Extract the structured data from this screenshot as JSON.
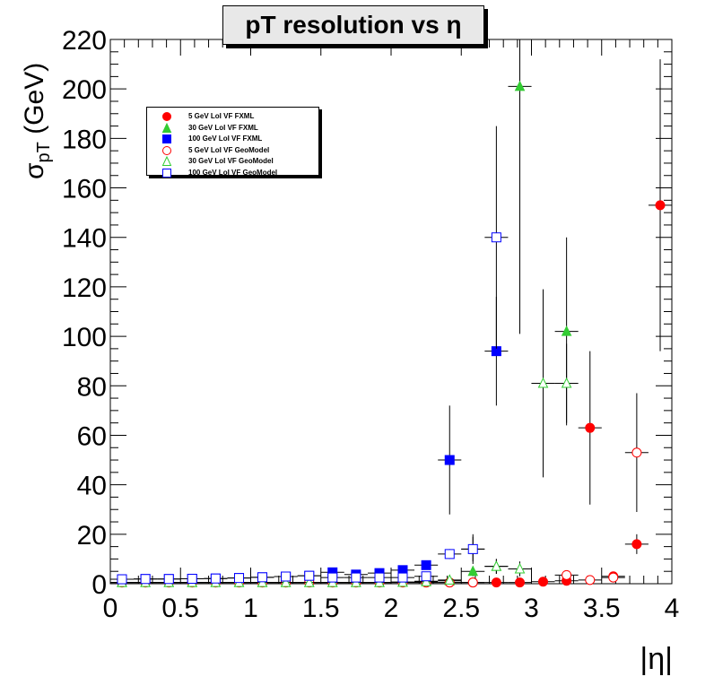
{
  "chart_data": {
    "type": "scatter",
    "title": "pT resolution vs η",
    "xlabel": "|η|",
    "ylabel_main": "σ",
    "ylabel_sub": "pT",
    "ylabel_unit": " (GeV)",
    "xlim": [
      0,
      4
    ],
    "ylim": [
      0,
      220
    ],
    "x_ticks": [
      "0",
      "0.5",
      "1",
      "1.5",
      "2",
      "2.5",
      "3",
      "3.5",
      "4"
    ],
    "y_ticks": [
      "0",
      "20",
      "40",
      "60",
      "80",
      "100",
      "120",
      "140",
      "160",
      "180",
      "200",
      "220"
    ],
    "grid": false,
    "legend_position": "top-left",
    "series": [
      {
        "name": "5 GeV LoI VF FXML",
        "marker": "circle",
        "filled": true,
        "color": "#ff0000",
        "points": [
          [
            0.083,
            0.5,
            0.3
          ],
          [
            0.25,
            0.5,
            0.3
          ],
          [
            0.417,
            0.5,
            0.3
          ],
          [
            0.583,
            0.5,
            0.3
          ],
          [
            0.75,
            0.5,
            0.3
          ],
          [
            0.917,
            0.5,
            0.3
          ],
          [
            1.083,
            0.5,
            0.3
          ],
          [
            1.25,
            0.5,
            0.3
          ],
          [
            1.417,
            0.5,
            0.3
          ],
          [
            1.583,
            0.5,
            0.3
          ],
          [
            1.75,
            0.5,
            0.3
          ],
          [
            1.917,
            0.5,
            0.3
          ],
          [
            2.083,
            0.5,
            0.3
          ],
          [
            2.25,
            0.5,
            0.3
          ],
          [
            2.417,
            0.5,
            0.3
          ],
          [
            2.583,
            0.5,
            0.3
          ],
          [
            2.75,
            0.5,
            0.3
          ],
          [
            2.917,
            0.5,
            0.3
          ],
          [
            3.083,
            0.8,
            0.5
          ],
          [
            3.25,
            1.2,
            0.8
          ],
          [
            3.417,
            63,
            31
          ],
          [
            3.583,
            3,
            1.5
          ],
          [
            3.75,
            16,
            4
          ],
          [
            3.917,
            153,
            59
          ]
        ]
      },
      {
        "name": "30 GeV LoI VF FXML",
        "marker": "triangle",
        "filled": true,
        "color": "#33cc33",
        "points": [
          [
            0.083,
            0.5,
            0.3
          ],
          [
            0.25,
            0.5,
            0.3
          ],
          [
            0.417,
            0.5,
            0.3
          ],
          [
            0.583,
            0.5,
            0.3
          ],
          [
            0.75,
            0.5,
            0.3
          ],
          [
            0.917,
            0.5,
            0.3
          ],
          [
            1.083,
            0.5,
            0.3
          ],
          [
            1.25,
            0.5,
            0.3
          ],
          [
            1.417,
            0.5,
            0.3
          ],
          [
            1.583,
            0.5,
            0.3
          ],
          [
            1.75,
            0.5,
            0.3
          ],
          [
            1.917,
            0.5,
            0.3
          ],
          [
            2.083,
            0.7,
            0.4
          ],
          [
            2.25,
            1,
            0.5
          ],
          [
            2.417,
            1.2,
            0.6
          ],
          [
            2.583,
            5,
            2
          ],
          [
            2.75,
            7,
            3
          ],
          [
            2.917,
            201,
            100
          ],
          [
            3.25,
            102,
            38
          ]
        ]
      },
      {
        "name": "100 GeV LoI VF FXML",
        "marker": "square",
        "filled": true,
        "color": "#0000ff",
        "points": [
          [
            0.083,
            1.8,
            0.4
          ],
          [
            0.25,
            1.9,
            0.4
          ],
          [
            0.417,
            1.9,
            0.4
          ],
          [
            0.583,
            2,
            0.4
          ],
          [
            0.75,
            2.1,
            0.4
          ],
          [
            0.917,
            2.3,
            0.5
          ],
          [
            1.083,
            2.6,
            0.5
          ],
          [
            1.25,
            2.9,
            0.6
          ],
          [
            1.417,
            3.2,
            0.6
          ],
          [
            1.583,
            4.6,
            0.8
          ],
          [
            1.75,
            3.7,
            0.7
          ],
          [
            1.917,
            4.3,
            0.8
          ],
          [
            2.083,
            5.5,
            1
          ],
          [
            2.25,
            7.5,
            1.5
          ],
          [
            2.417,
            50,
            22
          ],
          [
            2.75,
            94,
            22
          ]
        ]
      },
      {
        "name": "5 GeV LoI VF GeoModel",
        "marker": "circle",
        "filled": false,
        "color": "#ff0000",
        "points": [
          [
            0.083,
            0.5,
            0.3
          ],
          [
            0.25,
            0.5,
            0.3
          ],
          [
            0.417,
            0.5,
            0.3
          ],
          [
            0.583,
            0.5,
            0.3
          ],
          [
            0.75,
            0.5,
            0.3
          ],
          [
            0.917,
            0.5,
            0.3
          ],
          [
            1.083,
            0.5,
            0.3
          ],
          [
            1.25,
            0.5,
            0.3
          ],
          [
            1.417,
            0.5,
            0.3
          ],
          [
            1.583,
            0.5,
            0.3
          ],
          [
            1.75,
            0.5,
            0.3
          ],
          [
            1.917,
            0.5,
            0.3
          ],
          [
            2.083,
            0.5,
            0.3
          ],
          [
            2.25,
            0.5,
            0.3
          ],
          [
            2.417,
            0.5,
            0.3
          ],
          [
            2.583,
            0.5,
            0.3
          ],
          [
            3.25,
            3.5,
            1.5
          ],
          [
            3.417,
            1.5,
            0.8
          ],
          [
            3.583,
            2.5,
            1
          ],
          [
            3.75,
            53,
            24
          ]
        ]
      },
      {
        "name": "30 GeV LoI VF GeoModel",
        "marker": "triangle",
        "filled": false,
        "color": "#33cc33",
        "points": [
          [
            0.083,
            0.5,
            0.3
          ],
          [
            0.25,
            0.5,
            0.3
          ],
          [
            0.417,
            0.5,
            0.3
          ],
          [
            0.583,
            0.5,
            0.3
          ],
          [
            0.75,
            0.5,
            0.3
          ],
          [
            0.917,
            0.5,
            0.3
          ],
          [
            1.083,
            0.5,
            0.3
          ],
          [
            1.25,
            0.5,
            0.3
          ],
          [
            1.417,
            0.5,
            0.3
          ],
          [
            1.583,
            0.5,
            0.3
          ],
          [
            1.75,
            0.5,
            0.3
          ],
          [
            1.917,
            0.5,
            0.3
          ],
          [
            2.083,
            0.6,
            0.3
          ],
          [
            2.25,
            0.8,
            0.4
          ],
          [
            2.417,
            1.5,
            0.6
          ],
          [
            2.583,
            14,
            5
          ],
          [
            2.75,
            7,
            3
          ],
          [
            2.917,
            6,
            3
          ],
          [
            3.083,
            81,
            38
          ],
          [
            3.25,
            81,
            16
          ]
        ]
      },
      {
        "name": "100 GeV LoI VF GeoModel",
        "marker": "square",
        "filled": false,
        "color": "#0000ff",
        "points": [
          [
            0.083,
            1.8,
            0.4
          ],
          [
            0.25,
            1.9,
            0.4
          ],
          [
            0.417,
            1.9,
            0.4
          ],
          [
            0.583,
            2,
            0.4
          ],
          [
            0.75,
            2.1,
            0.4
          ],
          [
            0.917,
            2.3,
            0.5
          ],
          [
            1.083,
            2.6,
            0.5
          ],
          [
            1.25,
            2.9,
            0.6
          ],
          [
            1.417,
            3.2,
            0.6
          ],
          [
            1.583,
            2.5,
            0.6
          ],
          [
            1.75,
            2.5,
            0.6
          ],
          [
            1.917,
            2.5,
            0.6
          ],
          [
            2.083,
            2.5,
            0.6
          ],
          [
            2.25,
            3,
            0.8
          ],
          [
            2.417,
            12,
            2
          ],
          [
            2.583,
            14,
            6
          ],
          [
            2.75,
            140,
            45
          ]
        ]
      }
    ]
  }
}
